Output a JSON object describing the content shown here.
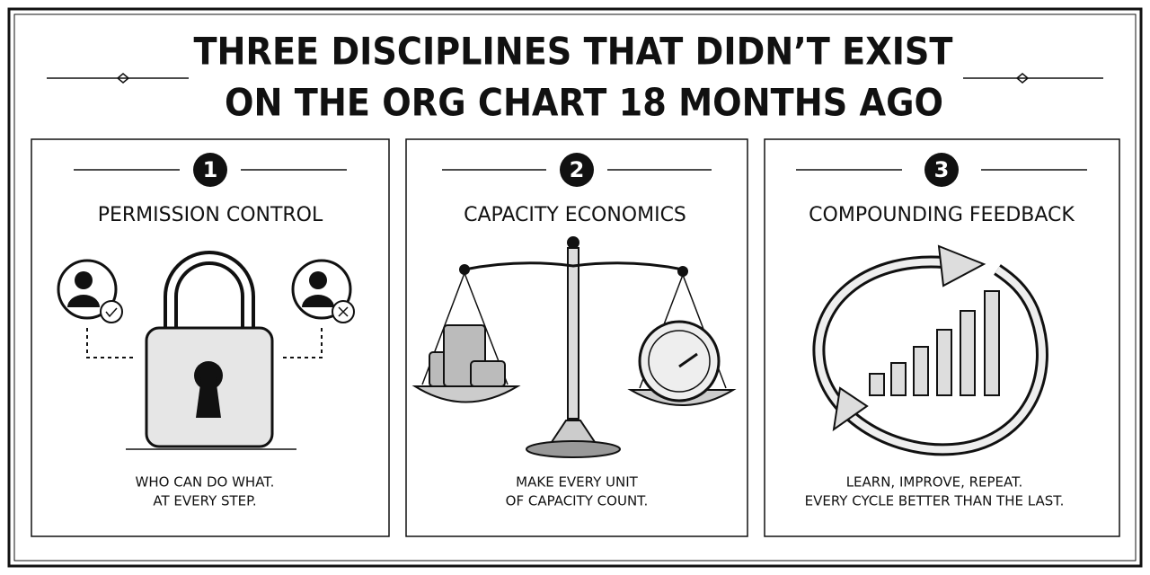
{
  "header": {
    "title_lines": [
      "THREE DISCIPLINES THAT DIDN’T EXIST",
      "ON THE ORG CHART 18 MONTHS AGO"
    ]
  },
  "panels": [
    {
      "number": "1",
      "heading": "PERMISSION CONTROL",
      "caption_lines": [
        "WHO CAN DO WHAT.",
        "AT EVERY STEP."
      ]
    },
    {
      "number": "2",
      "heading": "CAPACITY ECONOMICS",
      "caption_lines": [
        "MAKE EVERY UNIT",
        "OF CAPACITY COUNT."
      ]
    },
    {
      "number": "3",
      "heading": "COMPOUNDING FEEDBACK",
      "caption_lines": [
        "LEARN, IMPROVE, REPEAT.",
        "EVERY CYCLE BETTER THAN THE LAST."
      ]
    }
  ]
}
